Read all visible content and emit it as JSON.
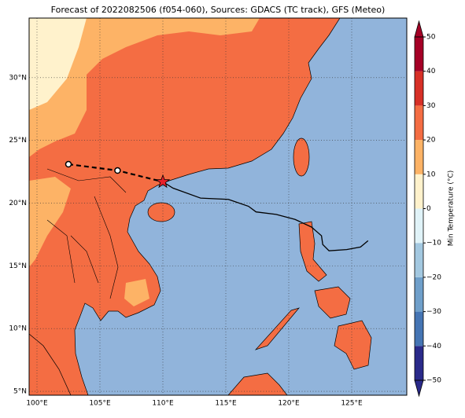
{
  "title": "Forecast of 2022082506 (f054-060), Sources: GDACS (TC track), GFS (Meteo)",
  "lonlim": [
    99.375,
    129.375
  ],
  "latlim": [
    4.69,
    34.75
  ],
  "lon_ticks": [
    {
      "value": 100,
      "label": "100°E"
    },
    {
      "value": 105,
      "label": "105°E"
    },
    {
      "value": 110,
      "label": "110°E"
    },
    {
      "value": 115,
      "label": "115°E"
    },
    {
      "value": 120,
      "label": "120°E"
    },
    {
      "value": 125,
      "label": "125°E"
    }
  ],
  "lat_ticks": [
    {
      "value": 5,
      "label": "5°N"
    },
    {
      "value": 10,
      "label": "10°N"
    },
    {
      "value": 15,
      "label": "15°N"
    },
    {
      "value": 20,
      "label": "20°N"
    },
    {
      "value": 25,
      "label": "25°N"
    },
    {
      "value": 30,
      "label": "30°N"
    }
  ],
  "colorbar": {
    "label": "Min Temperature (°C)",
    "lim": [
      -50,
      50
    ],
    "ticks": [
      {
        "value": -50,
        "label": "−50"
      },
      {
        "value": -40,
        "label": "−40"
      },
      {
        "value": -30,
        "label": "−30"
      },
      {
        "value": -20,
        "label": "−20"
      },
      {
        "value": -10,
        "label": "−10"
      },
      0,
      10,
      20,
      30,
      40,
      50
    ],
    "colors": [
      "#2a2a8a",
      "#4575b4",
      "#6f9fca",
      "#a3c8e0",
      "#e0f3f8",
      "#fff2cc",
      "#fdb366",
      "#f46d43",
      "#d73027",
      "#a50026"
    ]
  },
  "track": {
    "lon": [
      110.0,
      110.8,
      113.0,
      115.2,
      116.8,
      117.4,
      119.0,
      120.5,
      121.8,
      122.6,
      122.7,
      123.2,
      124.6,
      125.7,
      126.3
    ],
    "lat": [
      21.7,
      21.2,
      20.4,
      20.3,
      19.75,
      19.3,
      19.1,
      18.7,
      18.1,
      17.4,
      16.7,
      16.2,
      16.3,
      16.5,
      17.0
    ]
  },
  "forecast": {
    "lon": [
      102.5,
      106.4,
      110.0
    ],
    "lat": [
      23.1,
      22.6,
      21.7
    ]
  },
  "current": {
    "lon": 110.0,
    "lat": 21.7
  }
}
